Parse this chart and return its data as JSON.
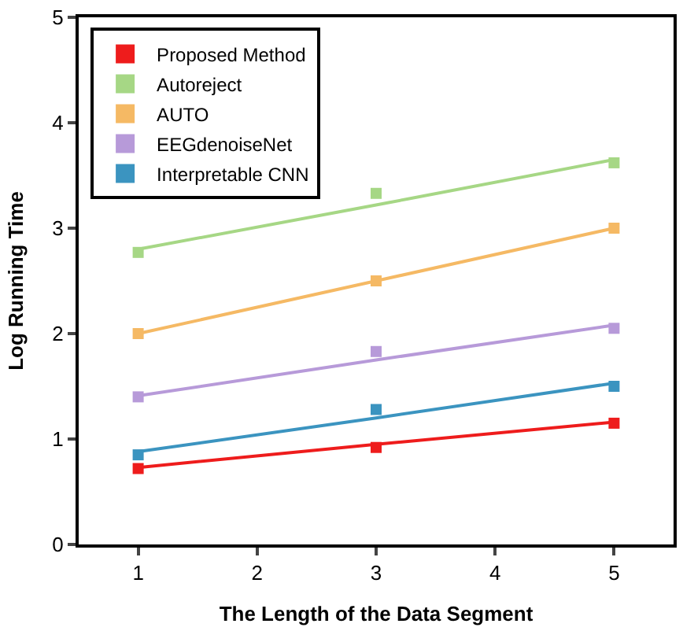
{
  "chart_data": {
    "type": "scatter",
    "xlabel": "The Length of the Data Segment",
    "ylabel": "Log Running Time",
    "x": [
      1,
      3,
      5
    ],
    "xlim": [
      0.5,
      5.5
    ],
    "xticks": [
      1,
      2,
      3,
      4,
      5
    ],
    "ylim": [
      0,
      5
    ],
    "yticks": [
      0,
      1,
      2,
      3,
      4,
      5
    ],
    "legend": "top left",
    "series": [
      {
        "name": "Proposed Method",
        "color": "#ee1c1c",
        "values": [
          0.72,
          0.92,
          1.15
        ],
        "marker": "square"
      },
      {
        "name": "Autoreject",
        "color": "#a6d785",
        "values": [
          2.77,
          3.33,
          3.62
        ],
        "marker": "square"
      },
      {
        "name": "AUTO",
        "color": "#f5b964",
        "values": [
          2.0,
          2.5,
          3.0
        ],
        "marker": "square"
      },
      {
        "name": "EEGdenoiseNet",
        "color": "#b79ad9",
        "values": [
          1.4,
          1.83,
          2.05
        ],
        "marker": "square"
      },
      {
        "name": "Interpretable CNN",
        "color": "#3b94c0",
        "values": [
          0.85,
          1.28,
          1.5
        ],
        "marker": "square"
      },
      {
        "type": "line",
        "color": "#ee1c1c",
        "values": [
          0.73,
          0.95,
          1.16
        ],
        "marker": "none"
      },
      {
        "type": "line",
        "color": "#a6d785",
        "values": [
          2.8,
          3.22,
          3.65
        ],
        "marker": "none"
      },
      {
        "type": "line",
        "color": "#f5b964",
        "values": [
          2.0,
          2.5,
          3.0
        ],
        "marker": "none"
      },
      {
        "type": "line",
        "color": "#b79ad9",
        "values": [
          1.41,
          1.75,
          2.08
        ],
        "marker": "none"
      },
      {
        "type": "line",
        "color": "#3b94c0",
        "values": [
          0.88,
          1.2,
          1.53
        ],
        "marker": "none"
      }
    ]
  }
}
